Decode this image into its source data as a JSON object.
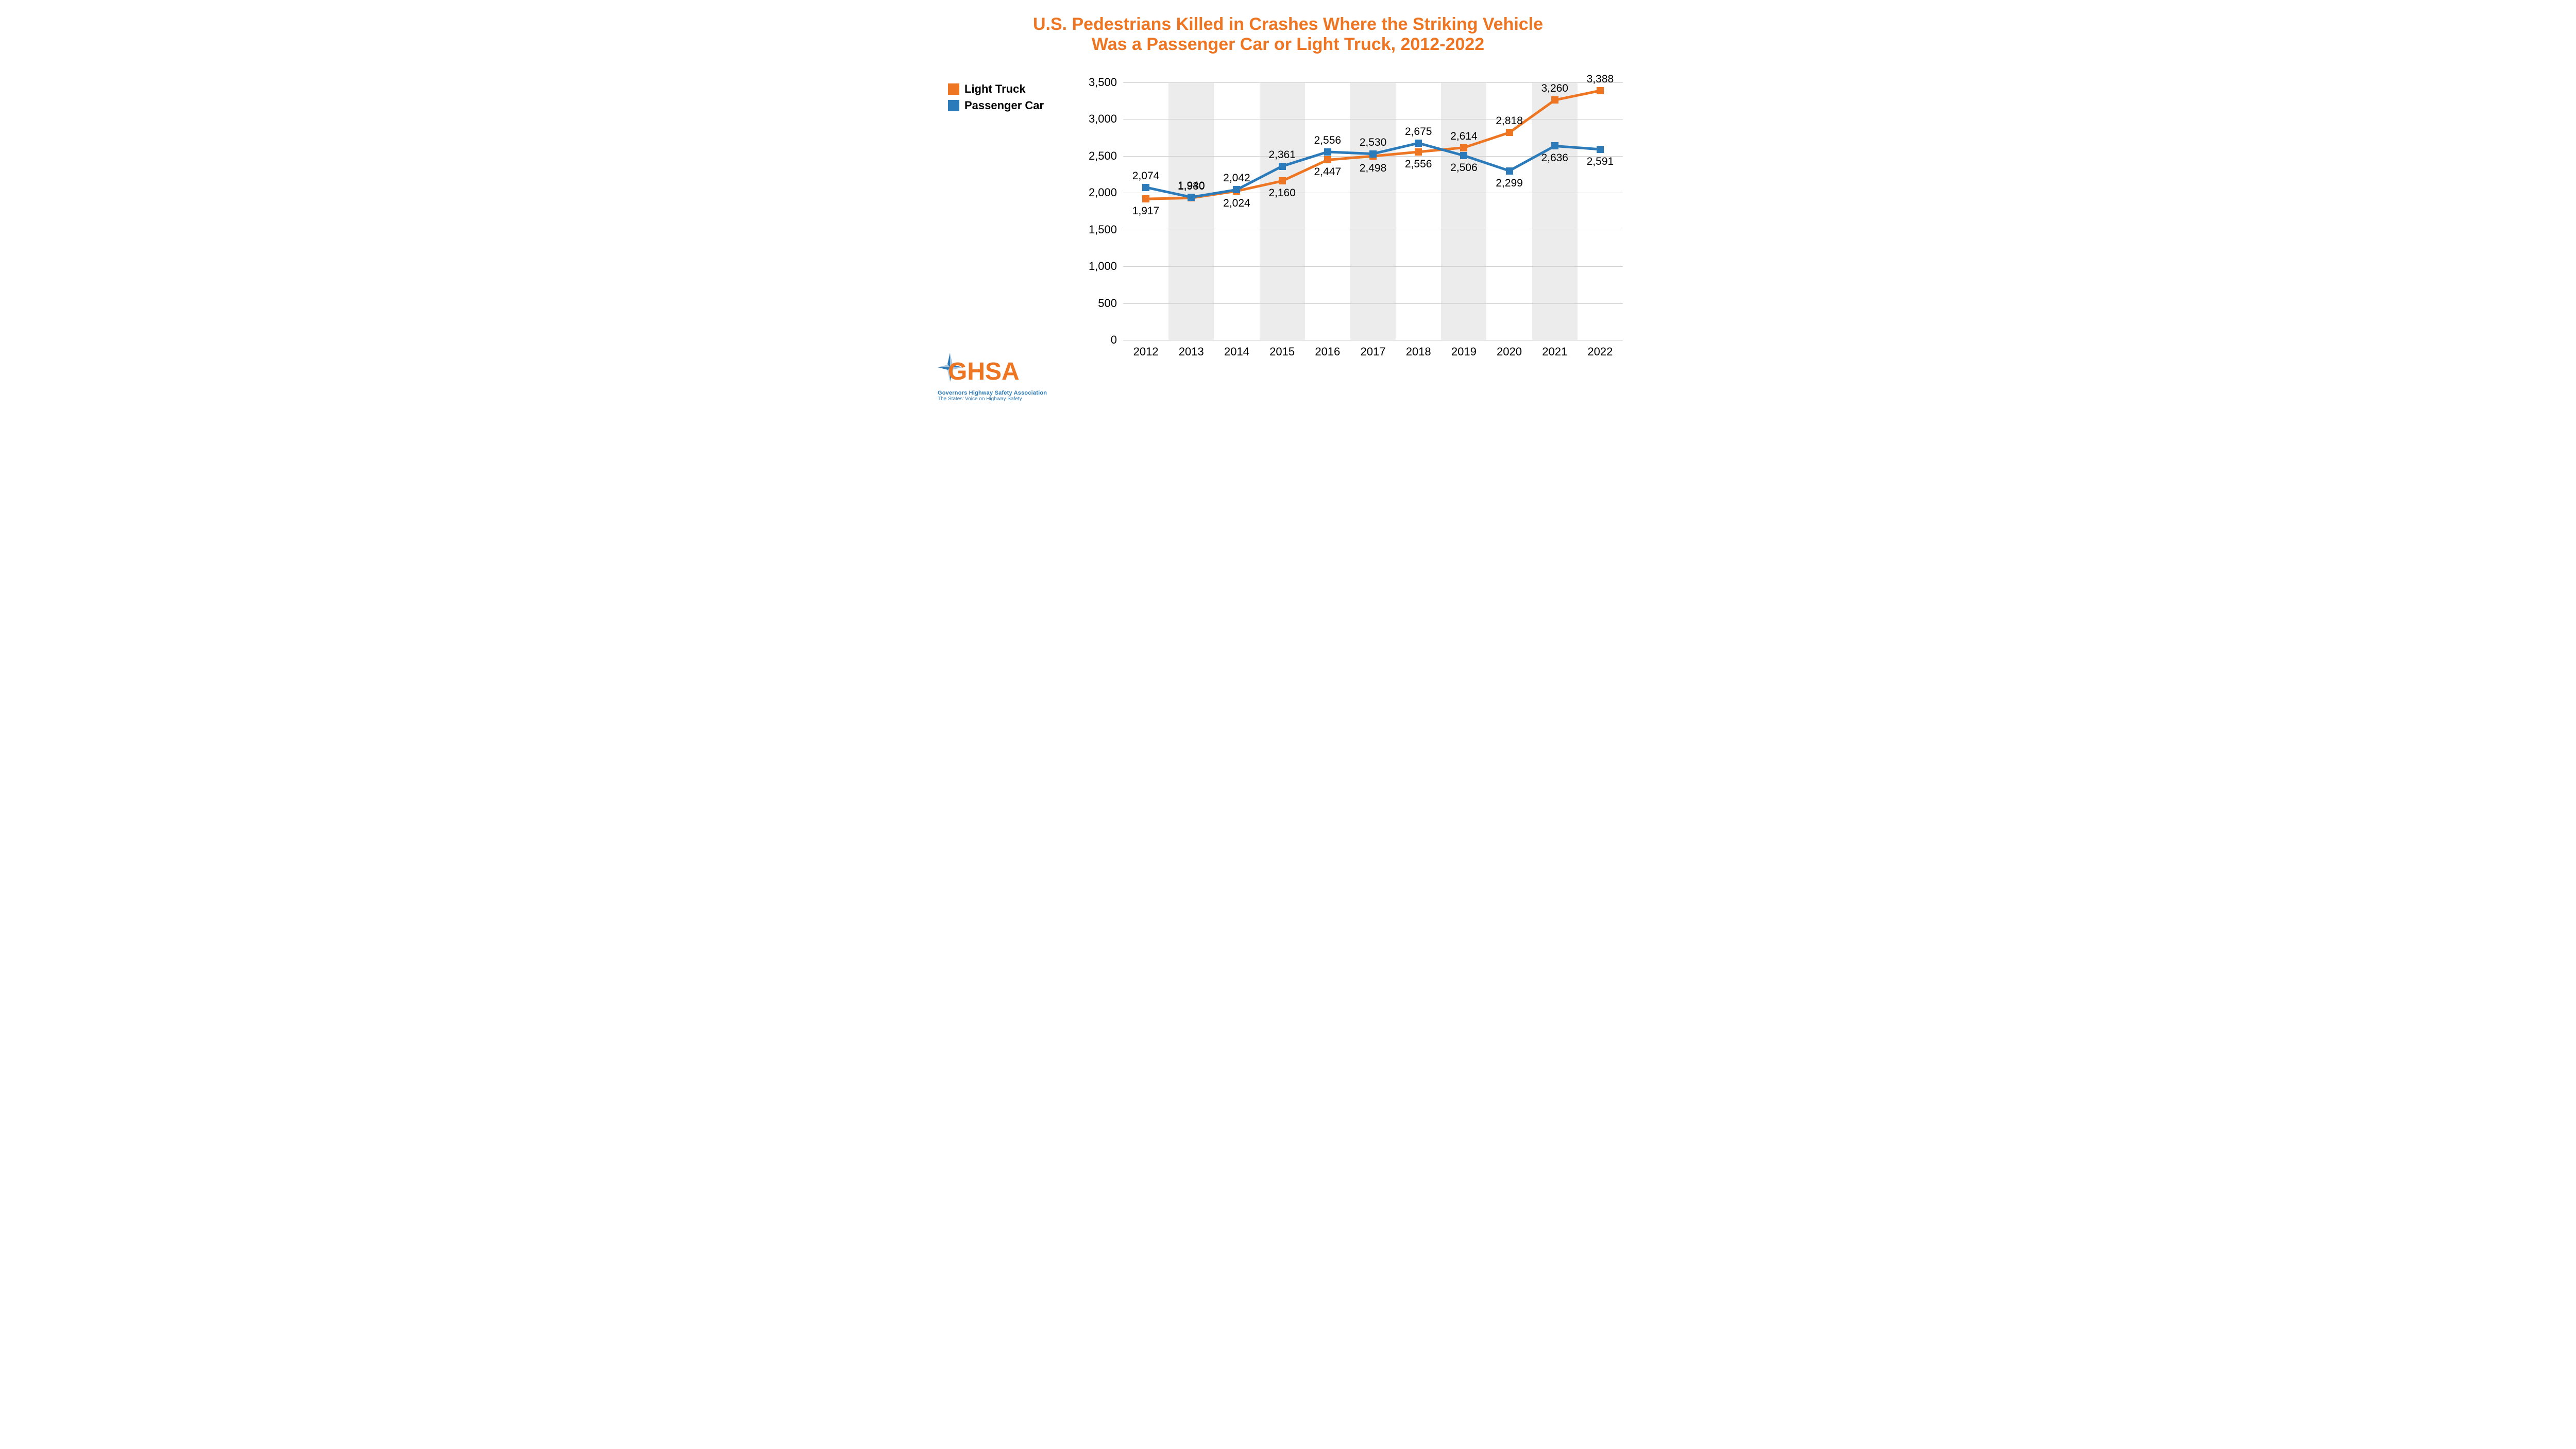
{
  "title": {
    "line1": "U.S. Pedestrians Killed in Crashes Where the Striking Vehicle",
    "line2": "Was a Passenger Car or Light Truck, 2012-2022",
    "color": "#ee7623",
    "fontsize": 34
  },
  "legend": {
    "items": [
      {
        "label": "Light Truck",
        "color": "#ee7623"
      },
      {
        "label": "Passenger Car",
        "color": "#2b7bba"
      }
    ],
    "fontsize": 22
  },
  "chart": {
    "type": "line",
    "background_color": "#ffffff",
    "band_color": "#ececec",
    "grid_color": "#cfcfcf",
    "axis_fontsize": 22,
    "ylim": [
      0,
      3500
    ],
    "ytick_step": 500,
    "yticks": [
      "0",
      "500",
      "1,000",
      "1,500",
      "2,000",
      "2,500",
      "3,000",
      "3,500"
    ],
    "categories": [
      "2012",
      "2013",
      "2014",
      "2015",
      "2016",
      "2017",
      "2018",
      "2019",
      "2020",
      "2021",
      "2022"
    ],
    "line_width": 5,
    "marker_size": 14,
    "label_fontsize": 21,
    "label_color": "#000000",
    "series": [
      {
        "name": "Light Truck",
        "color": "#ee7623",
        "values": [
          1917,
          1930,
          2024,
          2160,
          2447,
          2498,
          2556,
          2614,
          2818,
          3260,
          3388
        ],
        "labels": [
          "1,917",
          "1,930",
          "2,024",
          "2,160",
          "2,447",
          "2,498",
          "2,556",
          "2,614",
          "2,818",
          "3,260",
          "3,388"
        ],
        "label_pos": [
          "below",
          "above",
          "below",
          "below",
          "below",
          "below",
          "below",
          "above",
          "above",
          "above",
          "above"
        ]
      },
      {
        "name": "Passenger Car",
        "color": "#2b7bba",
        "values": [
          2074,
          1940,
          2042,
          2361,
          2556,
          2530,
          2675,
          2506,
          2299,
          2636,
          2591
        ],
        "labels": [
          "2,074",
          "1,940",
          "2,042",
          "2,361",
          "2,556",
          "2,530",
          "2,675",
          "2,506",
          "2,299",
          "2,636",
          "2,591"
        ],
        "label_pos": [
          "above",
          "above",
          "above",
          "above",
          "above",
          "above",
          "above",
          "below",
          "below",
          "below",
          "below"
        ]
      }
    ]
  },
  "logo": {
    "text": "GHSA",
    "color_main": "#ee7623",
    "color_star": "#2b7bba",
    "sub1": "Governors Highway Safety Association",
    "sub2": "The States' Voice on Highway Safety",
    "sub_color": "#2b7bba",
    "sub1_fontsize": 11,
    "sub2_fontsize": 10
  }
}
